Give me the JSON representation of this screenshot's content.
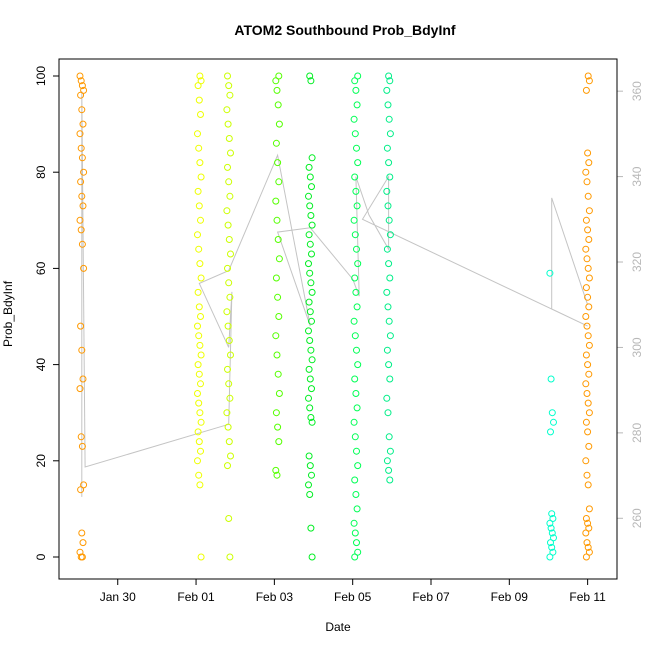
{
  "chart_data": {
    "type": "scatter",
    "title": "ATOM2 Southbound Prob_BdyInf",
    "xlabel": "Date",
    "ylabel": "Prob_BdyInf",
    "x_ticks": [
      "Jan 30",
      "Feb 01",
      "Feb 03",
      "Feb 05",
      "Feb 07",
      "Feb 09",
      "Feb 11"
    ],
    "xlim": [
      "2018-01-28T12:00",
      "2018-02-11T18:00"
    ],
    "ylim": [
      0,
      100
    ],
    "y_ticks": [
      0,
      20,
      40,
      60,
      80,
      100
    ],
    "secondary_y_ticks": [
      260,
      280,
      300,
      320,
      340,
      360
    ],
    "secondary_ylim": [
      250,
      368
    ],
    "grid": false,
    "colors": {
      "clusters": [
        "#ff9900",
        "#eeff00",
        "#ccff00",
        "#55ff00",
        "#00ee22",
        "#00ff55",
        "#00ee88",
        "#00ffcc"
      ],
      "line": "#c4c4c4",
      "right_axis": "#b8b8b8"
    },
    "series": [
      {
        "date": "2018-01-29T02:00",
        "values": [
          100,
          99,
          98,
          97,
          96,
          93,
          90,
          88,
          85,
          83,
          80,
          78,
          75,
          73,
          70,
          68,
          65,
          60,
          48,
          43,
          37,
          35,
          25,
          23,
          15,
          14,
          5,
          3,
          1,
          0,
          0
        ]
      },
      {
        "date": "2018-02-01T02:00",
        "values": [
          100,
          99,
          98,
          95,
          92,
          88,
          85,
          82,
          79,
          76,
          73,
          70,
          67,
          64,
          61,
          58,
          55,
          52,
          50,
          48,
          46,
          44,
          42,
          40,
          38,
          36,
          34,
          32,
          30,
          28,
          26,
          24,
          22,
          20,
          17,
          15,
          0
        ]
      },
      {
        "date": "2018-02-01T20:00",
        "values": [
          100,
          98,
          96,
          93,
          90,
          87,
          84,
          81,
          78,
          75,
          72,
          69,
          66,
          63,
          60,
          57,
          54,
          51,
          48,
          45,
          42,
          39,
          36,
          33,
          30,
          27,
          24,
          21,
          19,
          8,
          0
        ]
      },
      {
        "date": "2018-02-03T02:00",
        "values": [
          100,
          99,
          97,
          94,
          90,
          86,
          82,
          78,
          74,
          70,
          66,
          62,
          58,
          54,
          50,
          46,
          42,
          38,
          34,
          30,
          27,
          24,
          18,
          17
        ]
      },
      {
        "date": "2018-02-03T22:00",
        "values": [
          100,
          99,
          83,
          81,
          79,
          77,
          75,
          73,
          71,
          69,
          67,
          65,
          63,
          61,
          59,
          57,
          55,
          53,
          51,
          49,
          47,
          45,
          43,
          41,
          39,
          37,
          35,
          33,
          31,
          29,
          28,
          21,
          19,
          17,
          15,
          13,
          6,
          0
        ]
      },
      {
        "date": "2018-02-05T02:00",
        "values": [
          100,
          99,
          97,
          94,
          91,
          88,
          85,
          82,
          79,
          76,
          73,
          70,
          67,
          64,
          61,
          58,
          55,
          52,
          49,
          46,
          43,
          40,
          37,
          34,
          31,
          28,
          25,
          22,
          19,
          16,
          13,
          10,
          7,
          5,
          3,
          1,
          0
        ]
      },
      {
        "date": "2018-02-05T22:00",
        "values": [
          100,
          99,
          97,
          94,
          91,
          88,
          85,
          82,
          79,
          76,
          73,
          70,
          67,
          64,
          61,
          58,
          55,
          52,
          49,
          46,
          43,
          40,
          37,
          33,
          30,
          25,
          22,
          20,
          18,
          16
        ]
      },
      {
        "date": "2018-02-10T02:00",
        "values": [
          59,
          37,
          30,
          28,
          26,
          9,
          8,
          7,
          6,
          5,
          4,
          3,
          2,
          1,
          0
        ]
      },
      {
        "date": "2018-02-11T00:00",
        "values": [
          100,
          99,
          97,
          84,
          82,
          80,
          78,
          75,
          72,
          70,
          68,
          66,
          64,
          62,
          60,
          58,
          56,
          54,
          52,
          50,
          48,
          46,
          44,
          42,
          40,
          38,
          36,
          34,
          32,
          30,
          28,
          26,
          23,
          20,
          17,
          15,
          10,
          8,
          7,
          6,
          5,
          3,
          2,
          1,
          0
        ]
      }
    ],
    "line": {
      "x": [
        "2018-01-29T02:00",
        "2018-01-29T02:00",
        "2018-01-29T04:00",
        "2018-02-01T20:00",
        "2018-02-01T22:00",
        "2018-02-01T20:00",
        "2018-02-01T02:00",
        "2018-02-01T20:00",
        "2018-02-03T02:00",
        "2018-02-03T22:00",
        "2018-02-03T02:00",
        "2018-02-03T22:00",
        "2018-02-05T00:00",
        "2018-02-05T04:00",
        "2018-02-05T02:00",
        "2018-02-05T10:00",
        "2018-02-05T22:00",
        "2018-02-05T22:00",
        "2018-02-05T06:00",
        "2018-02-11T00:00",
        "2018-02-10T02:00",
        "2018-02-10T02:00",
        "2018-02-10T02:00",
        "2018-02-11T00:00"
      ],
      "y": [
        265,
        360,
        272,
        282,
        313,
        300,
        315,
        318,
        345,
        305,
        327,
        328,
        316,
        312,
        340,
        331,
        323,
        340,
        330,
        305,
        309,
        310,
        335,
        310
      ]
    }
  }
}
